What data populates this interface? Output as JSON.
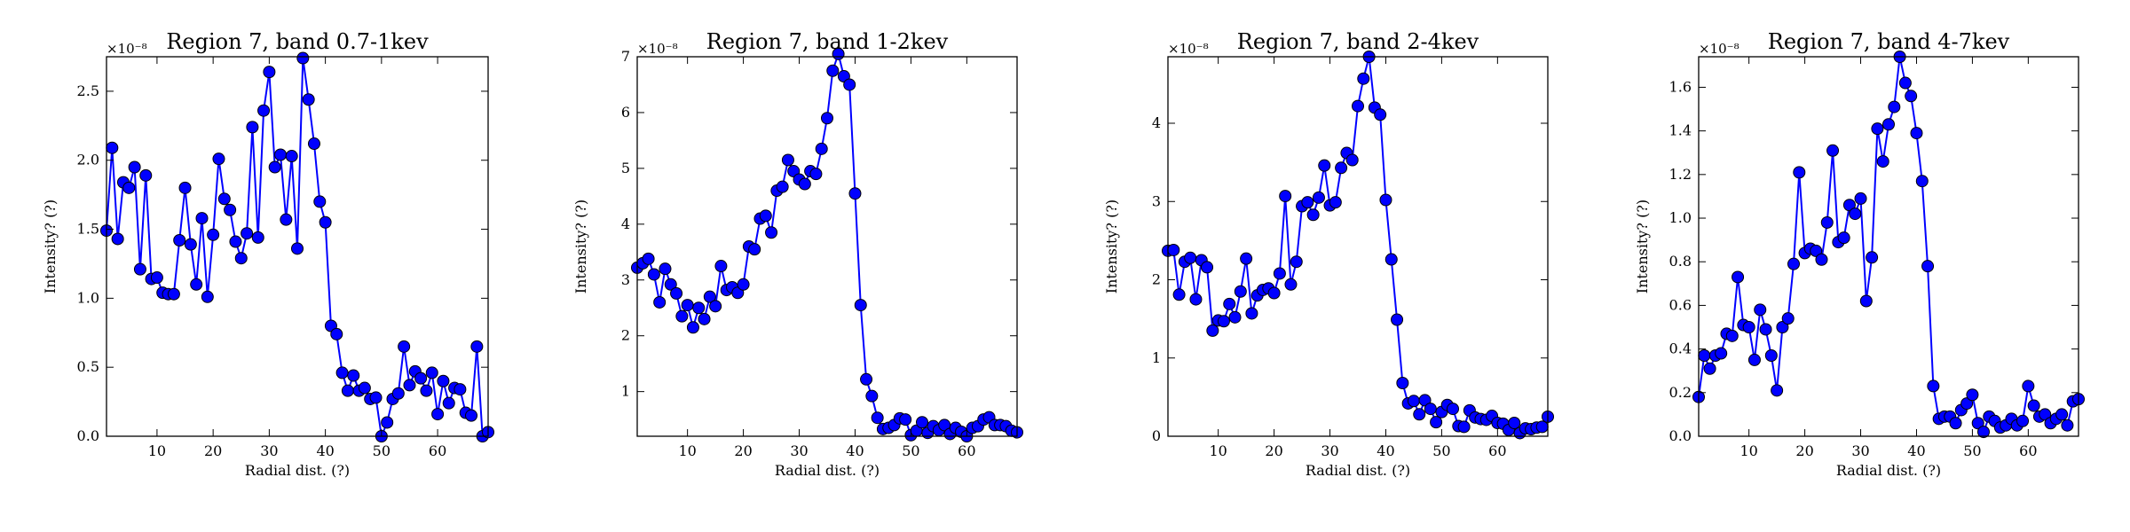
{
  "chart_data": [
    {
      "type": "line",
      "title": "Region 7, band 0.7-1kev",
      "xlabel": "Radial dist. (?)",
      "ylabel": "Intensity? (?)",
      "exponent": "×10⁻⁸",
      "xlim": [
        1,
        69
      ],
      "ylim": [
        0,
        2.75
      ],
      "xticks": [
        10,
        20,
        30,
        40,
        50,
        60
      ],
      "yticks": [
        0.0,
        0.5,
        1.0,
        1.5,
        2.0,
        2.5
      ],
      "ytick_labels": [
        "0.0",
        "0.5",
        "1.0",
        "1.5",
        "2.0",
        "2.5"
      ],
      "color": "#0000ff",
      "grid": false,
      "values": [
        1.49,
        2.09,
        1.43,
        1.84,
        1.8,
        1.95,
        1.21,
        1.89,
        1.14,
        1.15,
        1.04,
        1.03,
        1.03,
        1.42,
        1.8,
        1.39,
        1.1,
        1.58,
        1.01,
        1.46,
        2.01,
        1.72,
        1.64,
        1.41,
        1.29,
        1.47,
        2.24,
        1.44,
        2.36,
        2.64,
        1.95,
        2.04,
        1.57,
        2.03,
        1.36,
        2.74,
        2.44,
        2.12,
        1.7,
        1.55,
        0.8,
        0.74,
        0.46,
        0.33,
        0.44,
        0.33,
        0.35,
        0.27,
        0.28,
        0.0,
        0.1,
        0.27,
        0.31,
        0.65,
        0.37,
        0.47,
        0.42,
        0.33,
        0.46,
        0.16,
        0.4,
        0.24,
        0.35,
        0.34,
        0.17,
        0.15,
        0.65,
        0.0,
        0.03
      ]
    },
    {
      "type": "line",
      "title": "Region 7, band 1-2kev",
      "xlabel": "Radial dist. (?)",
      "ylabel": "Intensity? (?)",
      "exponent": "×10⁻⁸",
      "xlim": [
        1,
        69
      ],
      "ylim": [
        0.2,
        7.0
      ],
      "xticks": [
        10,
        20,
        30,
        40,
        50,
        60
      ],
      "yticks": [
        1,
        2,
        3,
        4,
        5,
        6,
        7
      ],
      "ytick_labels": [
        "1",
        "2",
        "3",
        "4",
        "5",
        "6",
        "7"
      ],
      "color": "#0000ff",
      "grid": false,
      "values": [
        3.22,
        3.3,
        3.38,
        3.1,
        2.6,
        3.2,
        2.92,
        2.76,
        2.35,
        2.55,
        2.15,
        2.5,
        2.3,
        2.7,
        2.53,
        3.25,
        2.82,
        2.87,
        2.77,
        2.92,
        3.6,
        3.55,
        4.1,
        4.15,
        3.85,
        4.6,
        4.67,
        5.15,
        4.95,
        4.8,
        4.72,
        4.95,
        4.9,
        5.35,
        5.9,
        6.75,
        7.05,
        6.65,
        6.5,
        4.55,
        2.55,
        1.22,
        0.92,
        0.53,
        0.33,
        0.35,
        0.4,
        0.52,
        0.5,
        0.22,
        0.3,
        0.45,
        0.26,
        0.38,
        0.31,
        0.4,
        0.24,
        0.35,
        0.28,
        0.2,
        0.35,
        0.38,
        0.5,
        0.54,
        0.4,
        0.4,
        0.38,
        0.3,
        0.27
      ]
    },
    {
      "type": "line",
      "title": "Region 7, band 2-4kev",
      "xlabel": "Radial dist. (?)",
      "ylabel": "Intensity? (?)",
      "exponent": "×10⁻⁸",
      "xlim": [
        1,
        69
      ],
      "ylim": [
        0,
        4.85
      ],
      "xticks": [
        10,
        20,
        30,
        40,
        50,
        60
      ],
      "yticks": [
        0,
        1,
        2,
        3,
        4
      ],
      "ytick_labels": [
        "0",
        "1",
        "2",
        "3",
        "4"
      ],
      "color": "#0000ff",
      "grid": false,
      "values": [
        2.37,
        2.38,
        1.81,
        2.23,
        2.28,
        1.75,
        2.25,
        2.16,
        1.35,
        1.48,
        1.47,
        1.69,
        1.52,
        1.85,
        2.27,
        1.57,
        1.8,
        1.87,
        1.89,
        1.83,
        2.08,
        3.07,
        1.94,
        2.23,
        2.94,
        2.99,
        2.83,
        3.05,
        3.46,
        2.95,
        2.99,
        3.43,
        3.62,
        3.53,
        4.22,
        4.57,
        4.85,
        4.2,
        4.11,
        3.02,
        2.26,
        1.49,
        0.68,
        0.42,
        0.45,
        0.28,
        0.46,
        0.35,
        0.18,
        0.31,
        0.4,
        0.35,
        0.13,
        0.12,
        0.33,
        0.24,
        0.22,
        0.21,
        0.26,
        0.17,
        0.16,
        0.08,
        0.17,
        0.04,
        0.1,
        0.09,
        0.11,
        0.12,
        0.25
      ]
    },
    {
      "type": "line",
      "title": "Region 7, band 4-7kev",
      "xlabel": "Radial dist. (?)",
      "ylabel": "Intensity? (?)",
      "exponent": "×10⁻⁸",
      "xlim": [
        1,
        69
      ],
      "ylim": [
        0,
        1.74
      ],
      "xticks": [
        10,
        20,
        30,
        40,
        50,
        60
      ],
      "yticks": [
        0.0,
        0.2,
        0.4,
        0.6,
        0.8,
        1.0,
        1.2,
        1.4,
        1.6
      ],
      "ytick_labels": [
        "0.0",
        "0.2",
        "0.4",
        "0.6",
        "0.8",
        "1.0",
        "1.2",
        "1.4",
        "1.6"
      ],
      "color": "#0000ff",
      "grid": false,
      "values": [
        0.18,
        0.37,
        0.31,
        0.37,
        0.38,
        0.47,
        0.46,
        0.73,
        0.51,
        0.5,
        0.35,
        0.58,
        0.49,
        0.37,
        0.21,
        0.5,
        0.54,
        0.79,
        1.21,
        0.84,
        0.86,
        0.85,
        0.81,
        0.98,
        1.31,
        0.89,
        0.91,
        1.06,
        1.02,
        1.09,
        0.62,
        0.82,
        1.41,
        1.26,
        1.43,
        1.51,
        1.74,
        1.62,
        1.56,
        1.39,
        1.17,
        0.78,
        0.23,
        0.08,
        0.09,
        0.09,
        0.06,
        0.12,
        0.15,
        0.19,
        0.06,
        0.02,
        0.09,
        0.07,
        0.04,
        0.05,
        0.08,
        0.05,
        0.07,
        0.23,
        0.14,
        0.09,
        0.1,
        0.06,
        0.08,
        0.1,
        0.05,
        0.16,
        0.17
      ]
    }
  ]
}
